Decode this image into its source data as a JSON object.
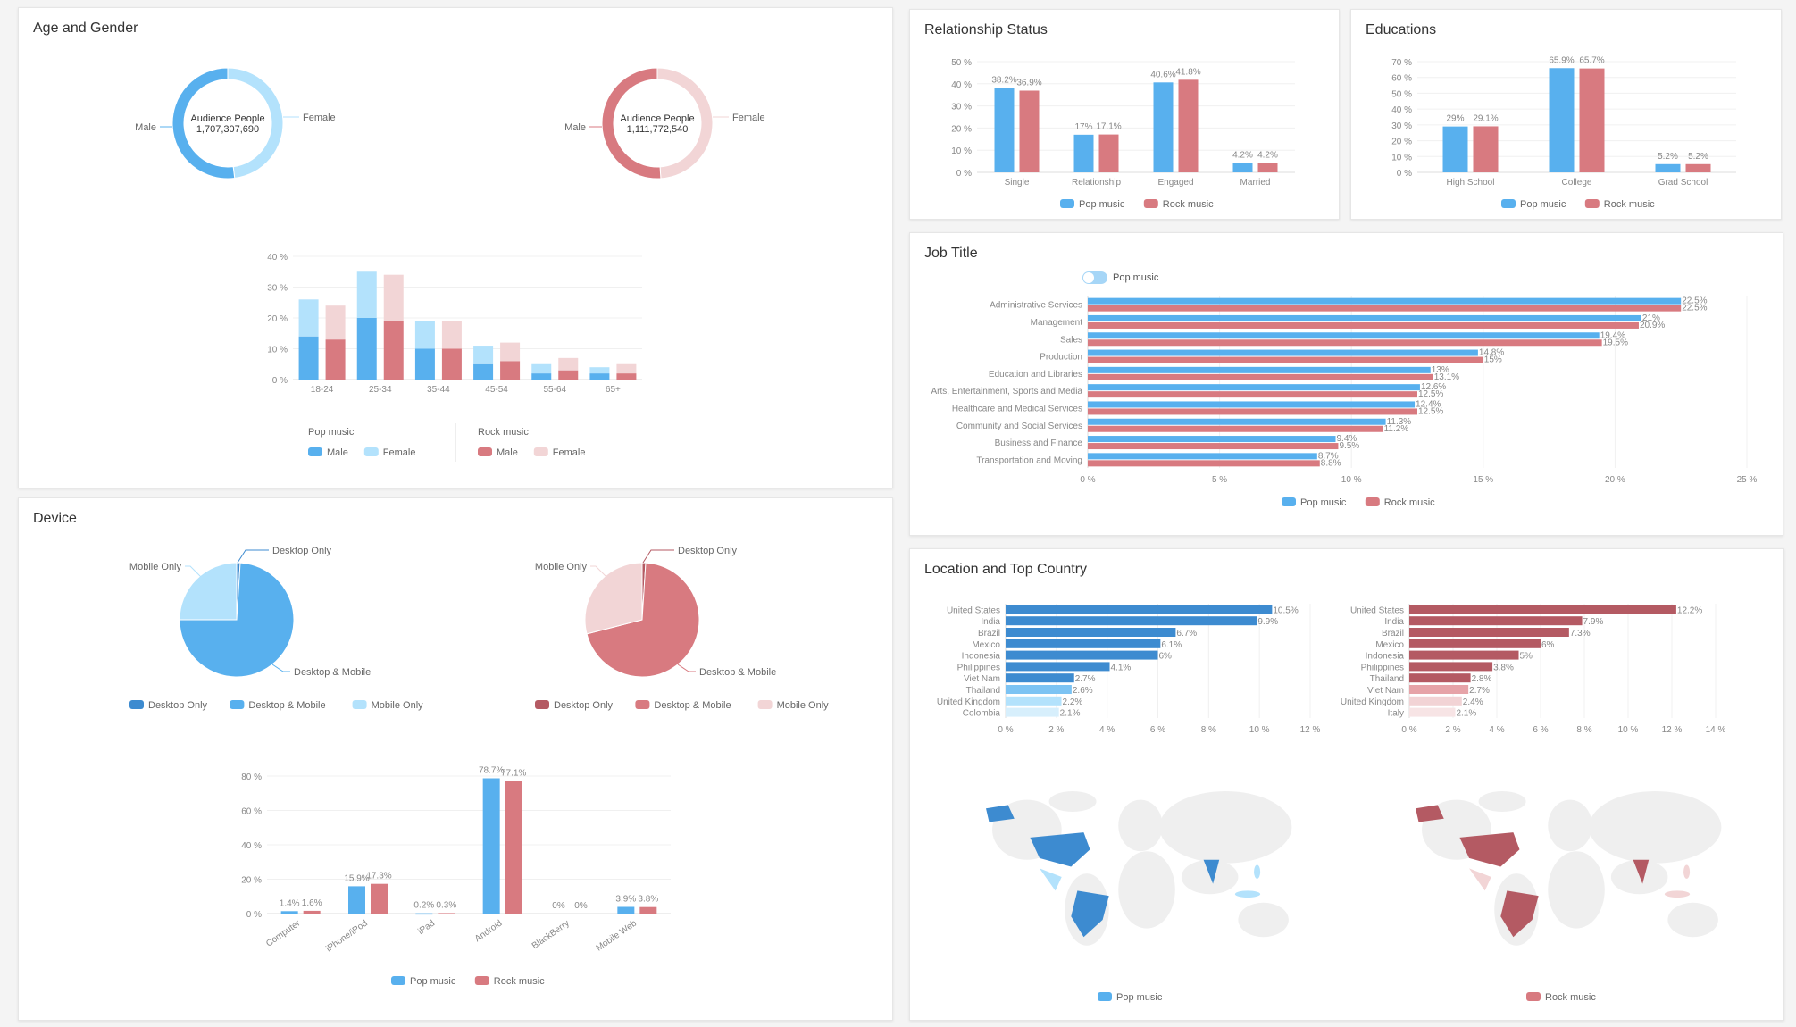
{
  "colors": {
    "pop": "#58b0ee",
    "pop_light": "#b3e2fc",
    "rock": "#d87a80",
    "rock_light": "#f2d5d6",
    "pop_dark": "#3d8bd0",
    "rock_dark": "#b45a63",
    "pop_desktop_only": "#3d8bd0",
    "rock_desktop_only": "#b45a63"
  },
  "panels": {
    "age_gender": {
      "title": "Age and Gender"
    },
    "device": {
      "title": "Device"
    },
    "relationship": {
      "title": "Relationship Status"
    },
    "educations": {
      "title": "Educations"
    },
    "job_title": {
      "title": "Job Title",
      "toggle_label": "Pop music",
      "toggle_on": false
    },
    "location": {
      "title": "Location and Top Country"
    }
  },
  "chart_data": [
    {
      "id": "pop_gender",
      "type": "pie",
      "donut": true,
      "center_label": "Audience People",
      "center_value": "1,707,307,690",
      "categories": [
        "Male",
        "Female"
      ],
      "values": [
        52,
        48
      ],
      "colors": [
        "#58b0ee",
        "#b3e2fc"
      ]
    },
    {
      "id": "rock_gender",
      "type": "pie",
      "donut": true,
      "center_label": "Audience People",
      "center_value": "1,111,772,540",
      "categories": [
        "Male",
        "Female"
      ],
      "values": [
        51,
        49
      ],
      "colors": [
        "#d87a80",
        "#f2d5d6"
      ]
    },
    {
      "id": "age",
      "type": "bar",
      "stacked": true,
      "categories": [
        "18-24",
        "25-34",
        "35-44",
        "45-54",
        "55-64",
        "65+"
      ],
      "ylim": [
        0,
        40
      ],
      "yticks": [
        "0 %",
        "10 %",
        "20 %",
        "30 %",
        "40 %"
      ],
      "legend_groups": [
        {
          "name": "Pop music",
          "items": [
            "Male",
            "Female"
          ]
        },
        {
          "name": "Rock music",
          "items": [
            "Male",
            "Female"
          ]
        }
      ],
      "series": [
        {
          "group": "Pop music",
          "name": "Male",
          "stack": "pop",
          "values": [
            14,
            20,
            10,
            5,
            2,
            2
          ]
        },
        {
          "group": "Pop music",
          "name": "Female",
          "stack": "pop",
          "values": [
            12,
            15,
            9,
            6,
            3,
            2
          ]
        },
        {
          "group": "Rock music",
          "name": "Male",
          "stack": "rock",
          "values": [
            13,
            19,
            10,
            6,
            3,
            2
          ]
        },
        {
          "group": "Rock music",
          "name": "Female",
          "stack": "rock",
          "values": [
            11,
            15,
            9,
            6,
            4,
            3
          ]
        }
      ]
    },
    {
      "id": "pop_device",
      "type": "pie",
      "categories": [
        "Desktop Only",
        "Desktop & Mobile",
        "Mobile Only"
      ],
      "values": [
        1,
        74,
        25
      ],
      "colors": [
        "#3d8bd0",
        "#58b0ee",
        "#b3e2fc"
      ]
    },
    {
      "id": "rock_device",
      "type": "pie",
      "categories": [
        "Desktop Only",
        "Desktop & Mobile",
        "Mobile Only"
      ],
      "values": [
        1,
        70,
        29
      ],
      "colors": [
        "#b45a63",
        "#d87a80",
        "#f2d5d6"
      ]
    },
    {
      "id": "device_os",
      "type": "bar",
      "categories": [
        "Computer",
        "iPhone/iPod",
        "iPad",
        "Android",
        "BlackBerry",
        "Mobile Web"
      ],
      "ylim": [
        0,
        80
      ],
      "yticks": [
        "0 %",
        "20 %",
        "40 %",
        "60 %",
        "80 %"
      ],
      "series": [
        {
          "name": "Pop music",
          "values": [
            1.4,
            15.9,
            0.2,
            78.7,
            0,
            3.9
          ],
          "labels": [
            "1.4%",
            "15.9%",
            "0.2%",
            "78.7%",
            "0%",
            "3.9%"
          ]
        },
        {
          "name": "Rock music",
          "values": [
            1.6,
            17.3,
            0.3,
            77.1,
            0,
            3.8
          ],
          "labels": [
            "1.6%",
            "17.3%",
            "0.3%",
            "77.1%",
            "0%",
            "3.8%"
          ]
        }
      ]
    },
    {
      "id": "relationship",
      "type": "bar",
      "categories": [
        "Single",
        "Relationship",
        "Engaged",
        "Married"
      ],
      "ylim": [
        0,
        50
      ],
      "yticks": [
        "0 %",
        "10 %",
        "20 %",
        "30 %",
        "40 %",
        "50 %"
      ],
      "series": [
        {
          "name": "Pop music",
          "values": [
            38.2,
            17,
            40.6,
            4.2
          ],
          "labels": [
            "38.2%",
            "17%",
            "40.6%",
            "4.2%"
          ]
        },
        {
          "name": "Rock music",
          "values": [
            36.9,
            17.1,
            41.8,
            4.2
          ],
          "labels": [
            "36.9%",
            "17.1%",
            "41.8%",
            "4.2%"
          ]
        }
      ]
    },
    {
      "id": "educations",
      "type": "bar",
      "categories": [
        "High School",
        "College",
        "Grad School"
      ],
      "ylim": [
        0,
        70
      ],
      "yticks": [
        "0 %",
        "10 %",
        "20 %",
        "30 %",
        "40 %",
        "50 %",
        "60 %",
        "70 %"
      ],
      "series": [
        {
          "name": "Pop music",
          "values": [
            29,
            65.9,
            5.2
          ],
          "labels": [
            "29%",
            "65.9%",
            "5.2%"
          ]
        },
        {
          "name": "Rock music",
          "values": [
            29.1,
            65.7,
            5.2
          ],
          "labels": [
            "29.1%",
            "65.7%",
            "5.2%"
          ]
        }
      ]
    },
    {
      "id": "job_title",
      "type": "bar",
      "orientation": "horizontal",
      "categories": [
        "Administrative Services",
        "Management",
        "Sales",
        "Production",
        "Education and Libraries",
        "Arts, Entertainment, Sports and Media",
        "Healthcare and Medical Services",
        "Community and Social Services",
        "Business and Finance",
        "Transportation and Moving"
      ],
      "xlim": [
        0,
        25
      ],
      "xticks": [
        "0 %",
        "5 %",
        "10 %",
        "15 %",
        "20 %",
        "25 %"
      ],
      "series": [
        {
          "name": "Pop music",
          "values": [
            22.5,
            21,
            19.4,
            14.8,
            13,
            12.6,
            12.4,
            11.3,
            9.4,
            8.7
          ],
          "labels": [
            "22.5%",
            "21%",
            "19.4%",
            "14.8%",
            "13%",
            "12.6%",
            "12.4%",
            "11.3%",
            "9.4%",
            "8.7%"
          ]
        },
        {
          "name": "Rock music",
          "values": [
            22.5,
            20.9,
            19.5,
            15,
            13.1,
            12.5,
            12.5,
            11.2,
            9.5,
            8.8
          ],
          "labels": [
            "22.5%",
            "20.9%",
            "19.5%",
            "15%",
            "13.1%",
            "12.5%",
            "12.5%",
            "11.2%",
            "9.5%",
            "8.8%"
          ]
        }
      ]
    },
    {
      "id": "pop_country",
      "type": "bar",
      "orientation": "horizontal",
      "categories": [
        "United States",
        "India",
        "Brazil",
        "Mexico",
        "Indonesia",
        "Philippines",
        "Viet Nam",
        "Thailand",
        "United Kingdom",
        "Colombia"
      ],
      "xlim": [
        0,
        12
      ],
      "xticks": [
        "0 %",
        "2 %",
        "4 %",
        "6 %",
        "8 %",
        "10 %",
        "12 %"
      ],
      "values": [
        10.5,
        9.9,
        6.7,
        6.1,
        6,
        4.1,
        2.7,
        2.6,
        2.2,
        2.1
      ],
      "labels": [
        "10.5%",
        "9.9%",
        "6.7%",
        "6.1%",
        "6%",
        "4.1%",
        "2.7%",
        "2.6%",
        "2.2%",
        "2.1%"
      ],
      "colors": [
        "#3d8bd0",
        "#3d8bd0",
        "#3d8bd0",
        "#3d8bd0",
        "#3d8bd0",
        "#3d8bd0",
        "#3d8bd0",
        "#7cc3f3",
        "#b3e2fc",
        "#d7effc"
      ]
    },
    {
      "id": "rock_country",
      "type": "bar",
      "orientation": "horizontal",
      "categories": [
        "United States",
        "India",
        "Brazil",
        "Mexico",
        "Indonesia",
        "Philippines",
        "Thailand",
        "Viet Nam",
        "United Kingdom",
        "Italy"
      ],
      "xlim": [
        0,
        14
      ],
      "xticks": [
        "0 %",
        "2 %",
        "4 %",
        "6 %",
        "8 %",
        "10 %",
        "12 %",
        "14 %"
      ],
      "values": [
        12.2,
        7.9,
        7.3,
        6,
        5,
        3.8,
        2.8,
        2.7,
        2.4,
        2.1
      ],
      "labels": [
        "12.2%",
        "7.9%",
        "7.3%",
        "6%",
        "5%",
        "3.8%",
        "2.8%",
        "2.7%",
        "2.4%",
        "2.1%"
      ],
      "colors": [
        "#b45a63",
        "#b45a63",
        "#b45a63",
        "#b45a63",
        "#b45a63",
        "#b45a63",
        "#b45a63",
        "#e6a3a8",
        "#f2d3d5",
        "#f7e4e5"
      ]
    },
    {
      "id": "pop_map",
      "type": "map",
      "legend": "Pop music",
      "color": "#3d8bd0"
    },
    {
      "id": "rock_map",
      "type": "map",
      "legend": "Rock music",
      "color": "#b45a63"
    }
  ]
}
